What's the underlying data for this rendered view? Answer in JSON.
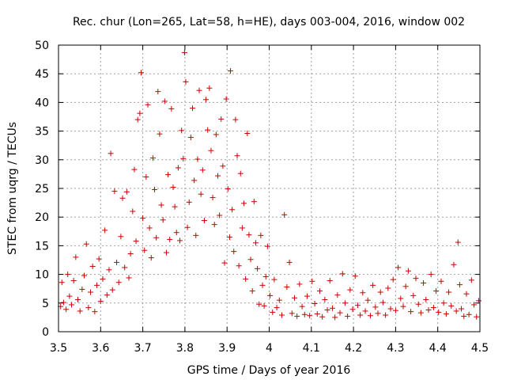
{
  "chart_data": {
    "type": "scatter",
    "title": "Rec. chur (Lon=265, Lat=58, h=HE), days 003-004, 2016, window 002",
    "xlabel": "GPS time / Days of year 2016",
    "ylabel": "STEC from uqrg / TECUs",
    "xlim": [
      3.5,
      4.5
    ],
    "ylim": [
      0,
      50
    ],
    "x_ticks": [
      3.5,
      3.6,
      3.7,
      3.8,
      3.9,
      4.0,
      4.1,
      4.2,
      4.3,
      4.4,
      4.5
    ],
    "x_tick_labels": [
      "3.5",
      "3.6",
      "3.7",
      "3.8",
      "3.9",
      "4",
      "4.1",
      "4.2",
      "4.3",
      "4.4",
      "4.5"
    ],
    "y_ticks": [
      0,
      5,
      10,
      15,
      20,
      25,
      30,
      35,
      40,
      45,
      50
    ],
    "y_tick_labels": [
      "0",
      "5",
      "10",
      "15",
      "20",
      "25",
      "30",
      "35",
      "40",
      "45",
      "50"
    ],
    "grid": true,
    "marker": "plus",
    "color": "#cc0000",
    "series": [
      {
        "name": "STEC",
        "points": [
          [
            3.505,
            4.4
          ],
          [
            3.508,
            8.6
          ],
          [
            3.512,
            5.1
          ],
          [
            3.518,
            3.9
          ],
          [
            3.522,
            10.0
          ],
          [
            3.526,
            6.2
          ],
          [
            3.531,
            4.7
          ],
          [
            3.536,
            8.9
          ],
          [
            3.541,
            13.0
          ],
          [
            3.546,
            5.6
          ],
          [
            3.551,
            3.6
          ],
          [
            3.556,
            7.4
          ],
          [
            3.561,
            9.8
          ],
          [
            3.566,
            15.3
          ],
          [
            3.571,
            4.2
          ],
          [
            3.576,
            6.9
          ],
          [
            3.581,
            11.4
          ],
          [
            3.586,
            3.5
          ],
          [
            3.591,
            8.1
          ],
          [
            3.596,
            12.7
          ],
          [
            3.6,
            5.3
          ],
          [
            3.605,
            9.2
          ],
          [
            3.61,
            17.7
          ],
          [
            3.615,
            6.4
          ],
          [
            3.62,
            10.8
          ],
          [
            3.624,
            31.1
          ],
          [
            3.628,
            7.3
          ],
          [
            3.633,
            24.5
          ],
          [
            3.638,
            12.1
          ],
          [
            3.643,
            8.6
          ],
          [
            3.648,
            16.6
          ],
          [
            3.652,
            23.3
          ],
          [
            3.657,
            11.2
          ],
          [
            3.662,
            24.4
          ],
          [
            3.667,
            9.4
          ],
          [
            3.671,
            13.6
          ],
          [
            3.676,
            21.0
          ],
          [
            3.68,
            28.3
          ],
          [
            3.684,
            15.8
          ],
          [
            3.688,
            37.0
          ],
          [
            3.693,
            38.1
          ],
          [
            3.696,
            45.2
          ],
          [
            3.7,
            19.8
          ],
          [
            3.704,
            14.2
          ],
          [
            3.708,
            27.0
          ],
          [
            3.712,
            39.6
          ],
          [
            3.716,
            18.1
          ],
          [
            3.72,
            12.9
          ],
          [
            3.724,
            30.3
          ],
          [
            3.728,
            24.8
          ],
          [
            3.732,
            16.4
          ],
          [
            3.736,
            41.9
          ],
          [
            3.74,
            34.5
          ],
          [
            3.744,
            22.1
          ],
          [
            3.748,
            19.5
          ],
          [
            3.752,
            40.2
          ],
          [
            3.756,
            13.8
          ],
          [
            3.76,
            27.4
          ],
          [
            3.764,
            16.1
          ],
          [
            3.768,
            38.9
          ],
          [
            3.772,
            25.2
          ],
          [
            3.776,
            21.8
          ],
          [
            3.78,
            17.3
          ],
          [
            3.784,
            28.6
          ],
          [
            3.788,
            15.9
          ],
          [
            3.792,
            35.1
          ],
          [
            3.796,
            30.2
          ],
          [
            3.799,
            48.7
          ],
          [
            3.802,
            43.6
          ],
          [
            3.806,
            18.2
          ],
          [
            3.81,
            22.6
          ],
          [
            3.814,
            33.9
          ],
          [
            3.818,
            39.0
          ],
          [
            3.822,
            26.4
          ],
          [
            3.826,
            16.8
          ],
          [
            3.83,
            30.1
          ],
          [
            3.834,
            42.1
          ],
          [
            3.838,
            24.0
          ],
          [
            3.842,
            28.2
          ],
          [
            3.846,
            19.4
          ],
          [
            3.85,
            40.5
          ],
          [
            3.854,
            35.2
          ],
          [
            3.858,
            42.5
          ],
          [
            3.862,
            31.6
          ],
          [
            3.866,
            23.4
          ],
          [
            3.87,
            18.7
          ],
          [
            3.874,
            34.4
          ],
          [
            3.878,
            27.2
          ],
          [
            3.882,
            20.3
          ],
          [
            3.886,
            37.1
          ],
          [
            3.89,
            28.9
          ],
          [
            3.894,
            12.0
          ],
          [
            3.898,
            40.6
          ],
          [
            3.902,
            24.9
          ],
          [
            3.906,
            16.5
          ],
          [
            3.908,
            45.5
          ],
          [
            3.912,
            21.3
          ],
          [
            3.916,
            14.0
          ],
          [
            3.92,
            37.0
          ],
          [
            3.924,
            30.7
          ],
          [
            3.928,
            11.5
          ],
          [
            3.932,
            27.6
          ],
          [
            3.936,
            18.1
          ],
          [
            3.94,
            22.4
          ],
          [
            3.944,
            9.2
          ],
          [
            3.948,
            34.6
          ],
          [
            3.952,
            16.9
          ],
          [
            3.956,
            12.6
          ],
          [
            3.96,
            7.1
          ],
          [
            3.964,
            22.7
          ],
          [
            3.968,
            15.5
          ],
          [
            3.972,
            11.0
          ],
          [
            3.976,
            4.8
          ],
          [
            3.98,
            16.8
          ],
          [
            3.984,
            8.1
          ],
          [
            3.988,
            4.5
          ],
          [
            3.992,
            9.6
          ],
          [
            3.996,
            14.9
          ],
          [
            4.002,
            6.3
          ],
          [
            4.008,
            3.4
          ],
          [
            4.012,
            9.1
          ],
          [
            4.018,
            4.2
          ],
          [
            4.024,
            5.5
          ],
          [
            4.03,
            2.9
          ],
          [
            4.036,
            20.4
          ],
          [
            4.042,
            7.8
          ],
          [
            4.048,
            12.1
          ],
          [
            4.054,
            3.2
          ],
          [
            4.06,
            5.9
          ],
          [
            4.066,
            2.7
          ],
          [
            4.072,
            8.3
          ],
          [
            4.078,
            4.4
          ],
          [
            4.084,
            3.0
          ],
          [
            4.09,
            6.2
          ],
          [
            4.096,
            2.8
          ],
          [
            4.102,
            8.8
          ],
          [
            4.108,
            4.9
          ],
          [
            4.114,
            3.1
          ],
          [
            4.12,
            7.1
          ],
          [
            4.126,
            2.6
          ],
          [
            4.132,
            5.6
          ],
          [
            4.138,
            3.8
          ],
          [
            4.144,
            8.9
          ],
          [
            4.15,
            4.1
          ],
          [
            4.156,
            2.5
          ],
          [
            4.162,
            6.4
          ],
          [
            4.168,
            3.3
          ],
          [
            4.174,
            10.1
          ],
          [
            4.18,
            5.0
          ],
          [
            4.186,
            2.7
          ],
          [
            4.192,
            7.3
          ],
          [
            4.198,
            3.9
          ],
          [
            4.204,
            9.7
          ],
          [
            4.21,
            4.6
          ],
          [
            4.216,
            2.9
          ],
          [
            4.222,
            6.8
          ],
          [
            4.228,
            3.6
          ],
          [
            4.234,
            5.5
          ],
          [
            4.24,
            2.8
          ],
          [
            4.246,
            8.1
          ],
          [
            4.252,
            4.3
          ],
          [
            4.258,
            3.2
          ],
          [
            4.264,
            6.9
          ],
          [
            4.27,
            5.1
          ],
          [
            4.276,
            2.9
          ],
          [
            4.282,
            7.6
          ],
          [
            4.288,
            4.0
          ],
          [
            4.294,
            9.1
          ],
          [
            4.3,
            3.7
          ],
          [
            4.306,
            11.2
          ],
          [
            4.312,
            5.8
          ],
          [
            4.318,
            4.4
          ],
          [
            4.324,
            7.9
          ],
          [
            4.33,
            10.6
          ],
          [
            4.336,
            3.5
          ],
          [
            4.342,
            6.3
          ],
          [
            4.348,
            9.3
          ],
          [
            4.354,
            4.8
          ],
          [
            4.36,
            3.3
          ],
          [
            4.366,
            8.5
          ],
          [
            4.372,
            5.6
          ],
          [
            4.378,
            3.8
          ],
          [
            4.384,
            10.0
          ],
          [
            4.39,
            4.2
          ],
          [
            4.396,
            7.1
          ],
          [
            4.402,
            3.4
          ],
          [
            4.408,
            8.8
          ],
          [
            4.414,
            5.0
          ],
          [
            4.42,
            3.1
          ],
          [
            4.426,
            6.9
          ],
          [
            4.432,
            4.5
          ],
          [
            4.438,
            11.7
          ],
          [
            4.444,
            3.6
          ],
          [
            4.448,
            15.6
          ],
          [
            4.452,
            8.2
          ],
          [
            4.456,
            4.0
          ],
          [
            4.462,
            2.7
          ],
          [
            4.468,
            6.6
          ],
          [
            4.474,
            3.0
          ],
          [
            4.48,
            9.0
          ],
          [
            4.486,
            4.7
          ],
          [
            4.492,
            2.6
          ],
          [
            4.497,
            5.4
          ]
        ]
      }
    ]
  }
}
